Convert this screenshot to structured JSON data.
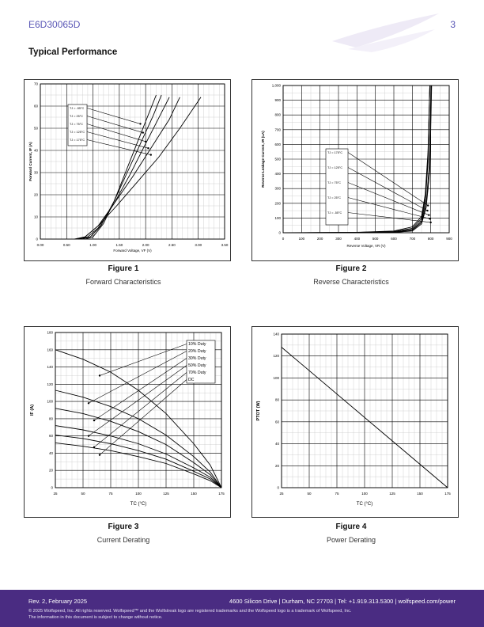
{
  "header": {
    "part_number": "E6D30065D",
    "page_number": "3"
  },
  "section_title": "Typical Performance",
  "figures": {
    "fig1": {
      "number": "Figure 1",
      "caption": "Forward Characteristics"
    },
    "fig2": {
      "number": "Figure 2",
      "caption": "Reverse Characteristics"
    },
    "fig3": {
      "number": "Figure 3",
      "caption": "Current Derating"
    },
    "fig4": {
      "number": "Figure 4",
      "caption": "Power Derating"
    }
  },
  "footer": {
    "revision": "Rev. 2, February 2025",
    "address": "4600 Silicon Drive  |  Durham, NC 27703  |  Tel: +1.919.313.5300  |  wolfspeed.com/power",
    "legal_1": "© 2025 Wolfspeed, Inc. All rights reserved. Wolfspeed™ and the Wolfstreak logo are registered trademarks and the Wolfspeed logo is a trademark of Wolfspeed, Inc.",
    "legal_2": "The information in this document is subject to change without notice."
  },
  "colors": {
    "accent": "#5a57b6",
    "footer_bg": "#4a2c82"
  },
  "chart_data": [
    {
      "type": "line",
      "xlabel": "Forward Voltage, VF (V)",
      "ylabel": "Forward Current, IF (A)",
      "xlim": [
        0,
        3.5
      ],
      "ylim": [
        0,
        70
      ],
      "x_ticks": [
        "0.00",
        "0.50",
        "1.00",
        "1.50",
        "2.00",
        "2.50",
        "3.00",
        "3.50"
      ],
      "y_ticks": [
        "0",
        "10",
        "20",
        "30",
        "40",
        "50",
        "60",
        "70"
      ],
      "legend": [
        "TJ = -55°C",
        "TJ = 25°C",
        "TJ = 75°C",
        "TJ = 125°C",
        "TJ = 175°C"
      ],
      "series": [
        {
          "name": "TJ = -55°C",
          "x": [
            0.85,
            1.0,
            1.2,
            1.4,
            1.6,
            1.8,
            2.0,
            2.2
          ],
          "y": [
            0,
            1,
            7,
            17,
            29,
            41,
            53,
            65
          ]
        },
        {
          "name": "TJ = 25°C",
          "x": [
            0.78,
            0.95,
            1.15,
            1.4,
            1.65,
            1.9,
            2.15,
            2.3
          ],
          "y": [
            0,
            1,
            6,
            17,
            30,
            43,
            56,
            65
          ]
        },
        {
          "name": "TJ = 75°C",
          "x": [
            0.72,
            0.9,
            1.1,
            1.4,
            1.7,
            2.0,
            2.3,
            2.45
          ],
          "y": [
            0,
            1,
            5,
            16,
            29,
            43,
            57,
            64
          ]
        },
        {
          "name": "TJ = 125°C",
          "x": [
            0.68,
            0.85,
            1.1,
            1.4,
            1.75,
            2.1,
            2.45,
            2.65
          ],
          "y": [
            0,
            1,
            6,
            16,
            28,
            41,
            54,
            64
          ]
        },
        {
          "name": "TJ = 175°C",
          "x": [
            0.65,
            0.85,
            1.1,
            1.45,
            1.85,
            2.25,
            2.65,
            3.05
          ],
          "y": [
            0,
            1,
            6,
            15,
            26,
            37,
            50,
            64
          ]
        }
      ]
    },
    {
      "type": "line",
      "xlabel": "Reverse Voltage, VR (V)",
      "ylabel": "Reverse Leakage Current, IR (uA)",
      "xlim": [
        0,
        900
      ],
      "ylim": [
        0,
        1000
      ],
      "x_ticks": [
        "0",
        "100",
        "200",
        "300",
        "400",
        "500",
        "600",
        "700",
        "800",
        "900"
      ],
      "y_ticks": [
        "0",
        "100",
        "200",
        "300",
        "400",
        "500",
        "600",
        "700",
        "800",
        "900",
        "1,000"
      ],
      "legend": [
        "TJ = 175°C",
        "TJ = 125°C",
        "TJ = 75°C",
        "TJ = 25°C",
        "TJ = -55°C"
      ],
      "series": [
        {
          "name": "TJ = 175°C",
          "x": [
            0,
            400,
            600,
            700,
            750,
            770,
            785,
            795
          ],
          "y": [
            0,
            3,
            12,
            40,
            110,
            260,
            550,
            1000
          ]
        },
        {
          "name": "TJ = 125°C",
          "x": [
            0,
            400,
            600,
            700,
            750,
            770,
            785,
            795
          ],
          "y": [
            0,
            2,
            8,
            30,
            95,
            230,
            520,
            1000
          ]
        },
        {
          "name": "TJ = 75°C",
          "x": [
            0,
            400,
            600,
            700,
            750,
            770,
            785,
            795
          ],
          "y": [
            0,
            1,
            5,
            22,
            80,
            200,
            480,
            1000
          ]
        },
        {
          "name": "TJ = 25°C",
          "x": [
            0,
            400,
            600,
            700,
            750,
            775,
            792,
            802
          ],
          "y": [
            0,
            1,
            4,
            18,
            70,
            190,
            460,
            1000
          ]
        },
        {
          "name": "TJ = -55°C",
          "x": [
            0,
            400,
            600,
            700,
            750,
            775,
            795,
            805
          ],
          "y": [
            0,
            0,
            2,
            12,
            60,
            170,
            420,
            1000
          ]
        }
      ]
    },
    {
      "type": "line",
      "xlabel": "TC (°C)",
      "ylabel": "IF (A)",
      "xlim": [
        25,
        175
      ],
      "ylim": [
        0,
        180
      ],
      "x_ticks": [
        "25",
        "50",
        "75",
        "100",
        "125",
        "150",
        "175"
      ],
      "y_ticks": [
        "0",
        "20",
        "40",
        "60",
        "80",
        "100",
        "120",
        "140",
        "160",
        "180"
      ],
      "legend": [
        "10% Duty",
        "20% Duty",
        "30% Duty",
        "50% Duty",
        "70% Duty",
        "DC"
      ],
      "series": [
        {
          "name": "10% Duty",
          "x": [
            25,
            50,
            75,
            100,
            125,
            150,
            165,
            175
          ],
          "y": [
            160,
            149,
            134,
            113,
            86,
            51,
            26,
            0
          ]
        },
        {
          "name": "20% Duty",
          "x": [
            25,
            50,
            75,
            100,
            125,
            150,
            165,
            175
          ],
          "y": [
            113,
            105,
            94,
            80,
            61,
            36,
            18,
            0
          ]
        },
        {
          "name": "30% Duty",
          "x": [
            25,
            50,
            75,
            100,
            125,
            150,
            165,
            175
          ],
          "y": [
            92,
            86,
            77,
            65,
            50,
            29,
            15,
            0
          ]
        },
        {
          "name": "50% Duty",
          "x": [
            25,
            50,
            75,
            100,
            125,
            150,
            165,
            175
          ],
          "y": [
            72,
            67,
            60,
            51,
            39,
            23,
            12,
            0
          ]
        },
        {
          "name": "70% Duty",
          "x": [
            25,
            50,
            75,
            100,
            125,
            150,
            165,
            175
          ],
          "y": [
            61,
            57,
            51,
            43,
            33,
            19,
            10,
            0
          ]
        },
        {
          "name": "DC",
          "x": [
            25,
            50,
            75,
            100,
            125,
            150,
            165,
            175
          ],
          "y": [
            52,
            48,
            43,
            36,
            28,
            16,
            8,
            0
          ]
        }
      ]
    },
    {
      "type": "line",
      "xlabel": "TC (°C)",
      "ylabel": "PTOT (W)",
      "xlim": [
        25,
        175
      ],
      "ylim": [
        0,
        140
      ],
      "x_ticks": [
        "25",
        "50",
        "75",
        "100",
        "125",
        "150",
        "175"
      ],
      "y_ticks": [
        "0",
        "20",
        "40",
        "60",
        "80",
        "100",
        "120",
        "140"
      ],
      "series": [
        {
          "name": "",
          "x": [
            25,
            175
          ],
          "y": [
            128,
            0
          ]
        }
      ]
    }
  ]
}
